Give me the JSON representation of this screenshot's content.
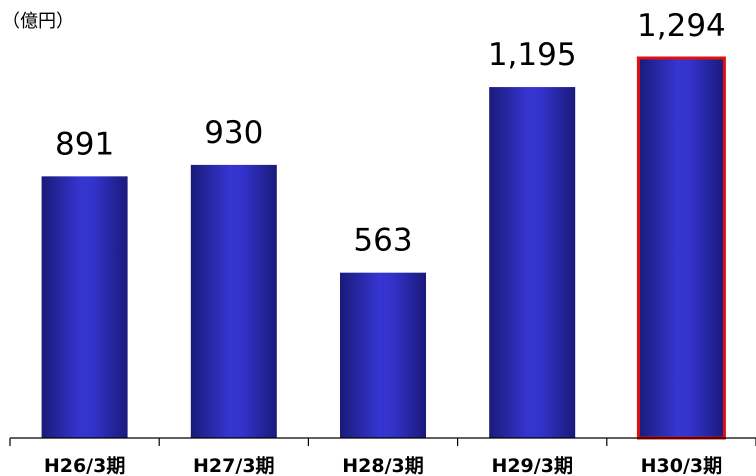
{
  "chart_data": {
    "type": "bar",
    "title": "",
    "xlabel": "",
    "ylabel": "",
    "unit_label": "（億円）",
    "categories": [
      "H26/3期",
      "H27/3期",
      "H28/3期",
      "H29/3期",
      "H30/3期"
    ],
    "values": [
      891,
      930,
      563,
      1195,
      1294
    ],
    "value_labels": [
      "891",
      "930",
      "563",
      "1,195",
      "1,294"
    ],
    "ylim": [
      0,
      1294
    ],
    "grid": false,
    "legend": "none",
    "highlighted_category": "H30/3期",
    "colors": {
      "bar_edge": "#1a1a7a",
      "bar_center": "#3333cc",
      "highlight_outline": "#dd1111",
      "axis": "#000000"
    }
  }
}
